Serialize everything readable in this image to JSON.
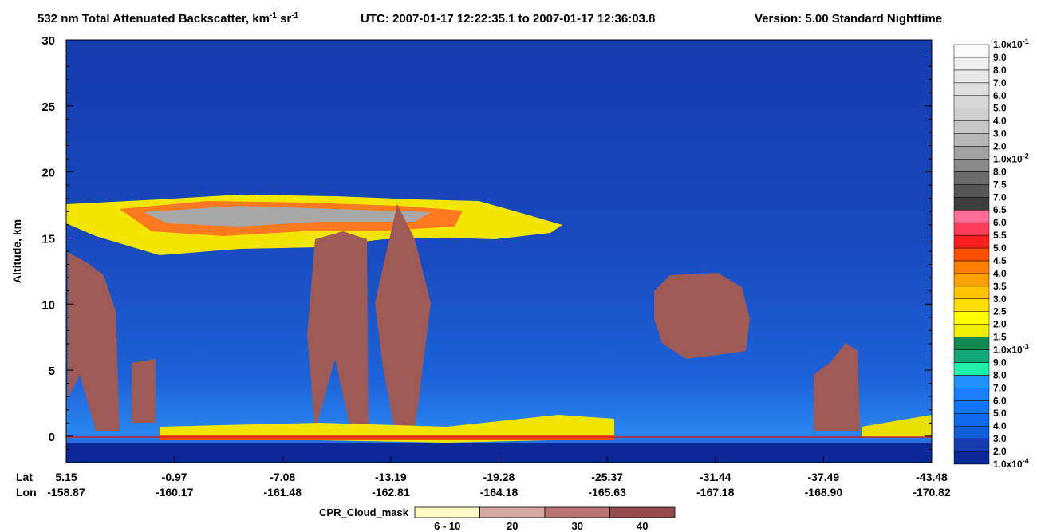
{
  "chart_data": {
    "type": "curtain",
    "title_parts": [
      "532 nm Total Attenuated Backscatter, km",
      "-1",
      " sr",
      "-1"
    ],
    "utc": "UTC:  2007-01-17 12:22:35.1  to  2007-01-17 12:36:03.8",
    "version": "Version: 5.00  Standard  Nighttime",
    "ylabel": "Altitude, km",
    "ylim": [
      -2,
      30
    ],
    "yticks": [
      0,
      5,
      10,
      15,
      20,
      25,
      30
    ],
    "lat_label": "Lat",
    "lon_label": "Lon",
    "lat": [
      "5.15",
      "-0.97",
      "-7.08",
      "-13.19",
      "-19.28",
      "-25.37",
      "-31.44",
      "-37.49",
      "-43.48"
    ],
    "lon": [
      "-158.87",
      "-160.17",
      "-161.48",
      "-162.81",
      "-164.18",
      "-165.63",
      "-167.18",
      "-168.90",
      "-170.82"
    ],
    "colorbar": {
      "levels": [
        {
          "base": "1.0x10",
          "exp": "-4"
        },
        "2.0",
        "3.0",
        "4.0",
        "5.0",
        "6.0",
        "7.0",
        "8.0",
        "9.0",
        {
          "base": "1.0x10",
          "exp": "-3"
        },
        "1.5",
        "2.0",
        "2.5",
        "3.0",
        "3.5",
        "4.0",
        "4.5",
        "5.0",
        "5.5",
        "6.0",
        "6.5",
        "7.0",
        "7.5",
        "8.0",
        {
          "base": "1.0x10",
          "exp": "-2"
        },
        "2.0",
        "3.0",
        "4.0",
        "5.0",
        "6.0",
        "7.0",
        "8.0",
        "9.0",
        {
          "base": "1.0x10",
          "exp": "-1"
        }
      ],
      "colors": [
        "#0a2896",
        "#163cae",
        "#0f5ed8",
        "#1068ea",
        "#1274f6",
        "#1a80ff",
        "#2290ff",
        "#22f0a8",
        "#14a878",
        "#108a50",
        "#eef000",
        "#ffff00",
        "#ffe000",
        "#ffc400",
        "#ffa000",
        "#ff8000",
        "#ff5000",
        "#ff1e1e",
        "#ff3c5a",
        "#ff6e96",
        "#3e3e3e",
        "#565656",
        "#6c6c6c",
        "#8a8a8a",
        "#a2a2a2",
        "#b8b8b8",
        "#c6c6c6",
        "#d0d0d0",
        "#d8d8d8",
        "#e0e0e0",
        "#e8e8e8",
        "#f0f0f0",
        "#fafafa"
      ]
    },
    "cpr_legend": {
      "title": "CPR_Cloud_mask",
      "labels": [
        "6 - 10",
        "20",
        "30",
        "40"
      ],
      "colors": [
        "#fffcc8",
        "#d6a6a4",
        "#b87472",
        "#964c4a"
      ]
    }
  }
}
